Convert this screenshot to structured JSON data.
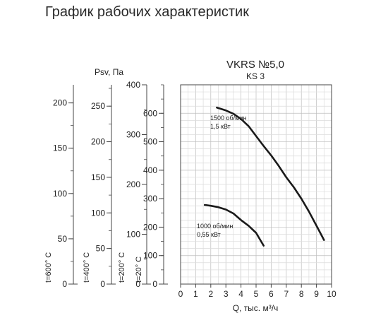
{
  "page_title": "График рабочих характеристик",
  "chart_data": {
    "type": "line",
    "title": "VKRS №5,0",
    "subtitle": "KS 3",
    "xlabel": "Q, тыс. м³/ч",
    "ylabel": "Psv, Па",
    "xlim": [
      0,
      10
    ],
    "x_ticks": [
      0,
      1,
      2,
      3,
      4,
      5,
      6,
      7,
      8,
      9,
      10
    ],
    "grid": true,
    "temperature_axes": [
      {
        "label": "t=600° C",
        "ylim": [
          0,
          220
        ],
        "ticks": [
          0,
          50,
          100,
          150,
          200
        ]
      },
      {
        "label": "t=400° C",
        "ylim": [
          0,
          280
        ],
        "ticks": [
          0,
          50,
          100,
          150,
          200,
          250
        ]
      },
      {
        "label": "t=200° C",
        "ylim": [
          0,
          400
        ],
        "ticks": [
          0,
          100,
          200,
          300,
          400
        ]
      },
      {
        "label": "t=20° C",
        "ylim": [
          0,
          700
        ],
        "ticks": [
          0,
          100,
          200,
          300,
          400,
          500,
          600
        ]
      }
    ],
    "main_ylim": [
      0,
      700
    ],
    "series": [
      {
        "label_line1": "1500 об/мин",
        "label_line2": "1,5 кВт",
        "x": [
          2.4,
          3.0,
          3.5,
          4.0,
          4.5,
          5.0,
          5.5,
          6.0,
          6.5,
          7.0,
          7.5,
          8.0,
          8.5,
          9.0,
          9.5
        ],
        "y": [
          620,
          610,
          598,
          580,
          555,
          520,
          485,
          452,
          415,
          375,
          340,
          300,
          255,
          205,
          155
        ]
      },
      {
        "label_line1": "1000 об/мин",
        "label_line2": "0,55 кВт",
        "x": [
          1.6,
          2.0,
          2.5,
          3.0,
          3.5,
          4.0,
          4.5,
          5.0,
          5.5
        ],
        "y": [
          278,
          275,
          270,
          262,
          248,
          225,
          205,
          180,
          135
        ]
      }
    ]
  }
}
